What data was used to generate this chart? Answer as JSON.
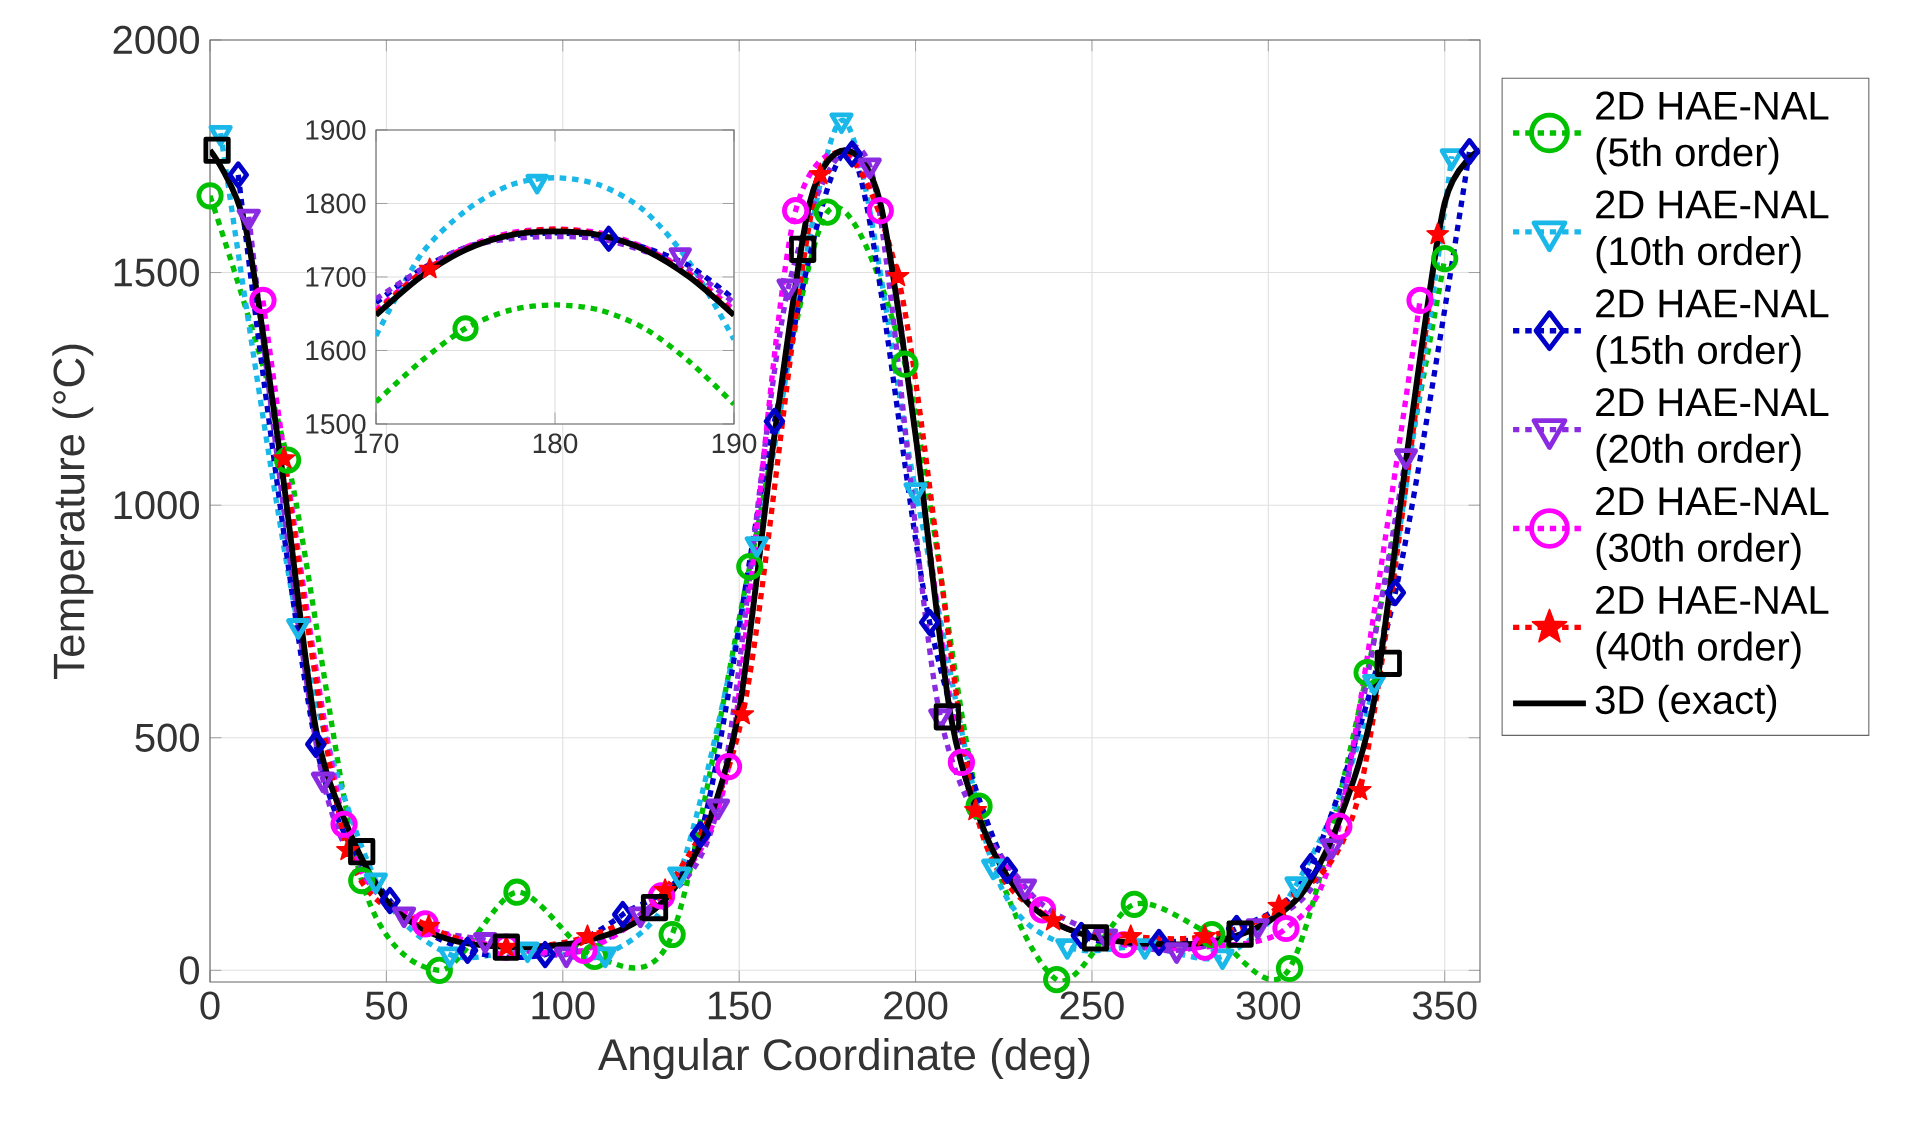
{
  "chart_data": [
    {
      "type": "line",
      "xlabel": "Angular Coordinate (deg)",
      "ylabel": "Temperature (°C)",
      "xlim": [
        0,
        360
      ],
      "ylim": [
        -25,
        2000
      ],
      "xticks": [
        0,
        50,
        100,
        150,
        200,
        250,
        300,
        350
      ],
      "yticks": [
        0,
        500,
        1000,
        1500,
        2000
      ],
      "grid": true,
      "legend": "right",
      "series": [
        {
          "name": "2D HAE-NAL (5th order)",
          "color": "#00c000",
          "marker": "circle",
          "line_style": "dotted",
          "x": [
            0,
            22,
            43,
            65,
            87,
            109,
            131,
            153,
            175,
            197,
            218,
            240,
            262,
            284,
            306,
            328,
            350
          ],
          "values": [
            1665,
            1097,
            193,
            0,
            168,
            30,
            77,
            868,
            1630,
            1303,
            353,
            -20,
            142,
            77,
            4,
            640,
            1530
          ]
        },
        {
          "name": "2D HAE-NAL (10th order)",
          "color": "#1ab8e8",
          "marker": "triangle",
          "line_style": "dotted",
          "x": [
            3,
            25,
            47,
            68,
            90,
            112,
            133,
            155,
            179,
            200,
            222,
            243,
            265,
            287,
            308,
            330,
            352
          ],
          "values": [
            1800,
            740,
            193,
            34,
            45,
            34,
            206,
            916,
            1827,
            1032,
            223,
            52,
            52,
            30,
            185,
            620,
            1750
          ]
        },
        {
          "name": "2D HAE-NAL (15th order)",
          "color": "#0000c8",
          "marker": "diamond",
          "line_style": "dotted",
          "x": [
            8,
            30,
            51,
            73,
            95,
            117,
            139,
            160,
            182,
            204,
            226,
            247,
            269,
            291,
            312,
            336,
            357
          ],
          "values": [
            1710,
            486,
            150,
            43,
            34,
            120,
            292,
            1180,
            1755,
            748,
            215,
            75,
            60,
            90,
            223,
            812,
            1760
          ]
        },
        {
          "name": "2D HAE-NAL (20th order)",
          "color": "#8a2be2",
          "marker": "triangle",
          "line_style": "dotted",
          "x": [
            11,
            32,
            55,
            78,
            101,
            122,
            144,
            164,
            187,
            207,
            231,
            254,
            274,
            297,
            318,
            339
          ],
          "values": [
            1620,
            410,
            120,
            65,
            34,
            120,
            352,
            1470,
            1730,
            546,
            180,
            73,
            43,
            95,
            267,
            1105
          ]
        },
        {
          "name": "2D HAE-NAL (30th order)",
          "color": "#ff00ff",
          "marker": "circle",
          "line_style": "dotted",
          "x": [
            15,
            38,
            61,
            84,
            106,
            128,
            147,
            166,
            190,
            213,
            236,
            259,
            282,
            305,
            320,
            343
          ],
          "values": [
            1440,
            314,
            100,
            50,
            43,
            160,
            438,
            1633,
            1633,
            447,
            130,
            55,
            50,
            90,
            310,
            1440
          ]
        },
        {
          "name": "2D HAE-NAL (40th order)",
          "color": "#ff0000",
          "marker": "star",
          "line_style": "dotted",
          "x": [
            21,
            39,
            62,
            84,
            107,
            129,
            151,
            173,
            195,
            217,
            239,
            261,
            282,
            303,
            326,
            348
          ],
          "values": [
            1100,
            258,
            95,
            50,
            73,
            172,
            550,
            1711,
            1492,
            344,
            107,
            73,
            73,
            138,
            387,
            1582
          ]
        },
        {
          "name": "3D (exact)",
          "color": "#000000",
          "marker": "none",
          "line_style": "solid",
          "x": [
            0,
            10,
            20,
            30,
            40,
            50,
            60,
            70,
            80,
            90,
            100,
            110,
            120,
            130,
            140,
            150,
            160,
            170,
            180,
            190,
            200,
            210,
            220,
            230,
            240,
            250,
            260,
            270,
            280,
            290,
            300,
            310,
            320,
            330,
            340,
            350,
            360
          ],
          "values": [
            1763,
            1600,
            1100,
            520,
            290,
            150,
            90,
            62,
            52,
            50,
            55,
            70,
            100,
            160,
            290,
            560,
            1150,
            1650,
            1763,
            1650,
            1150,
            545,
            290,
            160,
            100,
            72,
            60,
            56,
            58,
            72,
            105,
            170,
            320,
            580,
            1150,
            1650,
            1763
          ]
        },
        {
          "type": "scatter",
          "color": "#000000",
          "marker": "square",
          "x": [
            2,
            43,
            84,
            126,
            168,
            209,
            251,
            292,
            334
          ],
          "values": [
            1763,
            255,
            50,
            135,
            1550,
            545,
            70,
            78,
            660
          ]
        }
      ]
    },
    {
      "type": "line",
      "xlim": [
        170,
        190
      ],
      "ylim": [
        1500,
        1900
      ],
      "xticks": [
        170,
        180,
        190
      ],
      "yticks": [
        1500,
        1600,
        1700,
        1800,
        1900
      ],
      "grid": true,
      "x": [
        170,
        172.5,
        175,
        177.5,
        180,
        182.5,
        185,
        187.5,
        190
      ],
      "series": [
        {
          "color": "#00c000",
          "marker": "none",
          "line_style": "dotted",
          "values": [
            1530,
            1585,
            1630,
            1655,
            1662,
            1655,
            1630,
            1585,
            1527
          ]
        },
        {
          "color": "#1ab8e8",
          "marker": "none",
          "line_style": "dotted",
          "values": [
            1620,
            1730,
            1790,
            1825,
            1835,
            1825,
            1790,
            1720,
            1615
          ]
        },
        {
          "color": "#0000c8",
          "marker": "none",
          "line_style": "dotted",
          "values": [
            1665,
            1710,
            1740,
            1755,
            1760,
            1755,
            1740,
            1715,
            1670
          ]
        },
        {
          "color": "#8a2be2",
          "marker": "none",
          "line_style": "dotted",
          "values": [
            1670,
            1710,
            1740,
            1752,
            1755,
            1752,
            1735,
            1710,
            1665
          ]
        },
        {
          "color": "#ff00ff",
          "marker": "none",
          "line_style": "dotted",
          "values": [
            1655,
            1705,
            1740,
            1760,
            1765,
            1760,
            1740,
            1705,
            1655
          ]
        },
        {
          "color": "#ff0000",
          "marker": "none",
          "line_style": "dotted",
          "values": [
            1652,
            1705,
            1738,
            1758,
            1765,
            1758,
            1738,
            1703,
            1650
          ]
        },
        {
          "color": "#000000",
          "marker": "none",
          "line_style": "solid",
          "values": [
            1648,
            1700,
            1737,
            1757,
            1762,
            1757,
            1737,
            1700,
            1648
          ]
        },
        {
          "type": "scatter",
          "color": "#00c000",
          "marker": "circle",
          "x": [
            175
          ],
          "values": [
            1630
          ]
        },
        {
          "type": "scatter",
          "color": "#1ab8e8",
          "marker": "triangle",
          "x": [
            179
          ],
          "values": [
            1830
          ]
        },
        {
          "type": "scatter",
          "color": "#0000c8",
          "marker": "diamond",
          "x": [
            183
          ],
          "values": [
            1752
          ]
        },
        {
          "type": "scatter",
          "color": "#8a2be2",
          "marker": "triangle",
          "x": [
            187
          ],
          "values": [
            1730
          ]
        },
        {
          "type": "scatter",
          "color": "#ff0000",
          "marker": "star",
          "x": [
            173
          ],
          "values": [
            1711
          ]
        }
      ]
    }
  ]
}
